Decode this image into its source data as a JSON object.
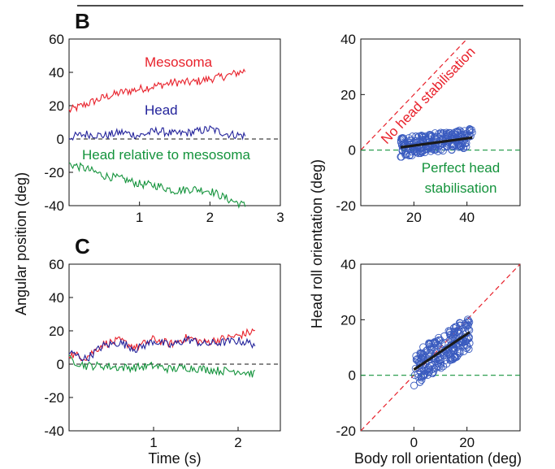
{
  "figure": {
    "panel_labels": [
      "B",
      "C"
    ],
    "shared_ylabel_left": "Angular position (deg)",
    "shared_ylabel_right": "Head roll orientation (deg)",
    "shared_xlabel_left": "Time (s)",
    "shared_xlabel_right": "Body roll orientation (deg)"
  },
  "colors": {
    "mesosoma": "#e8212b",
    "head": "#23239b",
    "relative": "#14933c",
    "scatter": "#3a5bbf",
    "fit": "#1a1a1a",
    "no_stab": "#e8212b",
    "perfect_stab": "#14933c"
  },
  "chart_data": [
    {
      "id": "B-left",
      "type": "line",
      "panel": "B",
      "xlim": [
        0,
        3
      ],
      "ylim": [
        -40,
        60
      ],
      "xticks": [
        1,
        2,
        3
      ],
      "yticks": [
        60,
        40,
        20,
        0,
        -20,
        -40
      ],
      "series": [
        {
          "name": "Mesosoma",
          "x": [
            0,
            0.25,
            0.5,
            0.75,
            1.0,
            1.25,
            1.5,
            1.75,
            2.0,
            2.25,
            2.5
          ],
          "values": [
            17,
            21,
            25,
            28,
            30,
            32,
            34,
            34,
            36,
            38,
            41
          ]
        },
        {
          "name": "Head",
          "x": [
            0,
            0.25,
            0.5,
            0.75,
            1.0,
            1.25,
            1.5,
            1.75,
            2.0,
            2.25,
            2.5
          ],
          "values": [
            1,
            3,
            2,
            4,
            2,
            5,
            3,
            4,
            6,
            3,
            2
          ]
        },
        {
          "name": "Head relative to mesosoma",
          "x": [
            0,
            0.25,
            0.5,
            0.75,
            1.0,
            1.25,
            1.5,
            1.75,
            2.0,
            2.25,
            2.5
          ],
          "values": [
            -15,
            -18,
            -22,
            -24,
            -27,
            -28,
            -31,
            -30,
            -31,
            -36,
            -40
          ]
        }
      ]
    },
    {
      "id": "B-right",
      "type": "scatter",
      "panel": "B",
      "xlim": [
        0,
        60
      ],
      "ylim": [
        -20,
        40
      ],
      "xticks": [
        20,
        40
      ],
      "yticks": [
        40,
        20,
        0,
        -20
      ],
      "annotations": [
        "No head stabilisation",
        "Perfect head",
        "stabilisation"
      ],
      "fit": {
        "x": [
          15,
          42
        ],
        "y": [
          1,
          4.5
        ]
      },
      "scatter_cluster": {
        "x_range": [
          15,
          42
        ],
        "y_range": [
          -2,
          8
        ]
      }
    },
    {
      "id": "C-left",
      "type": "line",
      "panel": "C",
      "xlim": [
        0,
        2.5
      ],
      "ylim": [
        -40,
        60
      ],
      "xticks": [
        1,
        2
      ],
      "yticks": [
        60,
        40,
        20,
        0,
        -20,
        -40
      ],
      "series": [
        {
          "name": "Mesosoma",
          "x": [
            0,
            0.2,
            0.4,
            0.6,
            0.8,
            1.0,
            1.2,
            1.4,
            1.6,
            1.8,
            2.0,
            2.2
          ],
          "values": [
            6,
            4,
            12,
            14,
            10,
            15,
            12,
            16,
            13,
            15,
            17,
            20
          ]
        },
        {
          "name": "Head",
          "x": [
            0,
            0.2,
            0.4,
            0.6,
            0.8,
            1.0,
            1.2,
            1.4,
            1.6,
            1.8,
            2.0,
            2.2
          ],
          "values": [
            7,
            3,
            11,
            13,
            9,
            14,
            11,
            15,
            12,
            13,
            14,
            12
          ]
        },
        {
          "name": "Head relative to mesosoma",
          "x": [
            0,
            0.2,
            0.4,
            0.6,
            0.8,
            1.0,
            1.2,
            1.4,
            1.6,
            1.8,
            2.0,
            2.2
          ],
          "values": [
            3,
            -1,
            -1,
            -2,
            -2,
            -1,
            -3,
            -2,
            -3,
            -4,
            -4,
            -6
          ]
        }
      ]
    },
    {
      "id": "C-right",
      "type": "scatter",
      "panel": "C",
      "xlim": [
        -20,
        40
      ],
      "ylim": [
        -20,
        40
      ],
      "xticks": [
        0,
        20
      ],
      "yticks": [
        40,
        20,
        0,
        -20
      ],
      "fit": {
        "x": [
          0,
          21
        ],
        "y": [
          2,
          15.5
        ]
      },
      "scatter_cluster": {
        "x_range": [
          0,
          21
        ],
        "y_range": [
          0,
          17
        ]
      }
    }
  ]
}
